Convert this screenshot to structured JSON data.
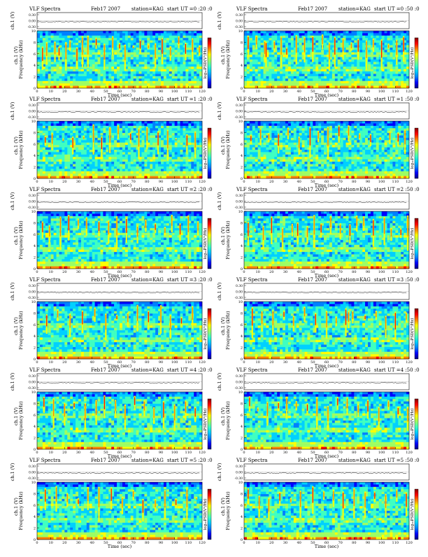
{
  "page": {
    "colors": {
      "colorbar": [
        "#000080",
        "#0000ff",
        "#0080ff",
        "#00d0ff",
        "#40ffc0",
        "#a0ff60",
        "#ffff00",
        "#ff8000",
        "#ff0000",
        "#800000"
      ],
      "background_noise": "#00c8ff",
      "axis": "#000000"
    }
  },
  "chart_data": [
    {
      "type": "heatmap",
      "title_left": "VLF Spectra",
      "date": "Feb17 2007",
      "station": "station=KAG",
      "start": "start UT =0 :20 :0",
      "top_ylabel": "ch.1 (V)",
      "top_yticks": [
        "0.30",
        "0.00",
        "-0.30"
      ],
      "ylabel": "Frequency (kHz)",
      "yticks": [
        "0",
        "2",
        "4",
        "6",
        "8",
        "10"
      ],
      "ylim": [
        0,
        10
      ],
      "xlabel": "Time (sec)",
      "xticks": [
        "0",
        "10",
        "20",
        "30",
        "40",
        "50",
        "60",
        "70",
        "80",
        "90",
        "100",
        "110",
        "120"
      ],
      "xlim": [
        0,
        120
      ],
      "colorbar_label": "log₁₀PSD(V²/Hz)",
      "bursts": [
        4,
        7,
        13,
        16,
        21,
        24,
        29,
        33,
        37,
        43,
        49,
        55,
        60,
        64,
        70,
        75,
        81,
        86,
        91,
        97,
        103,
        108,
        113,
        118
      ]
    },
    {
      "type": "heatmap",
      "title_left": "VLF Spectra",
      "date": "Feb17 2007",
      "station": "station=KAG",
      "start": "start UT =0 :50 :0",
      "top_ylabel": "ch.1 (V)",
      "top_yticks": [
        "0.30",
        "0.00",
        "-0.30"
      ],
      "ylabel": "Frequency (kHz)",
      "yticks": [
        "0",
        "2",
        "4",
        "6",
        "8",
        "10"
      ],
      "ylim": [
        0,
        10
      ],
      "xlabel": "Time (sec)",
      "xticks": [
        "0",
        "10",
        "20",
        "30",
        "40",
        "50",
        "60",
        "70",
        "80",
        "90",
        "100",
        "110",
        "120"
      ],
      "xlim": [
        0,
        120
      ],
      "colorbar_label": "log₁₀PSD(V²/Hz)",
      "bursts": [
        3,
        9,
        15,
        16,
        22,
        27,
        31,
        38,
        44,
        50,
        57,
        62,
        66,
        72,
        78,
        83,
        89,
        94,
        100,
        105,
        111,
        116
      ]
    },
    {
      "type": "heatmap",
      "title_left": "VLF Spectra",
      "date": "Feb17 2007",
      "station": "station=KAG",
      "start": "start UT =1 :20 :0",
      "top_ylabel": "ch.1 (V)",
      "top_yticks": [
        "0.30",
        "0.00",
        "-0.30"
      ],
      "ylabel": "Frequency (kHz)",
      "yticks": [
        "0",
        "2",
        "4",
        "6",
        "8",
        "10"
      ],
      "ylim": [
        0,
        10
      ],
      "xlabel": "Time (sec)",
      "xticks": [
        "0",
        "10",
        "20",
        "30",
        "40",
        "50",
        "60",
        "70",
        "80",
        "90",
        "100",
        "110",
        "120"
      ],
      "xlim": [
        0,
        120
      ],
      "colorbar_label": "log₁₀PSD(V²/Hz)",
      "bursts": [
        6,
        11,
        19,
        26,
        34,
        41,
        47,
        53,
        59,
        68,
        74,
        80,
        88,
        95,
        101,
        109,
        115
      ]
    },
    {
      "type": "heatmap",
      "title_left": "VLF Spectra",
      "date": "Feb17 2007",
      "station": "station=KAG",
      "start": "start UT =1 :50 :0",
      "top_ylabel": "ch.1 (V)",
      "top_yticks": [
        "0.30",
        "0.00",
        "-0.30"
      ],
      "ylabel": "Frequency (kHz)",
      "yticks": [
        "0",
        "2",
        "4",
        "6",
        "8",
        "10"
      ],
      "ylim": [
        0,
        10
      ],
      "xlabel": "Time (sec)",
      "xticks": [
        "0",
        "10",
        "20",
        "30",
        "40",
        "50",
        "60",
        "70",
        "80",
        "90",
        "100",
        "110",
        "120"
      ],
      "xlim": [
        0,
        120
      ],
      "colorbar_label": "log₁₀PSD(V²/Hz)",
      "bursts": [
        5,
        12,
        18,
        25,
        32,
        40,
        48,
        54,
        61,
        69,
        76,
        84,
        92,
        99,
        106,
        112,
        117
      ]
    },
    {
      "type": "heatmap",
      "title_left": "VLF Spectra",
      "date": "Feb17 2007",
      "station": "station=KAG",
      "start": "start UT =2 :20 :0",
      "top_ylabel": "ch.1 (V)",
      "top_yticks": [
        "0.30",
        "0.00",
        "-0.30"
      ],
      "ylabel": "Frequency (kHz)",
      "yticks": [
        "0",
        "2",
        "4",
        "6",
        "8",
        "10"
      ],
      "ylim": [
        0,
        10
      ],
      "xlabel": "Time (sec)",
      "xticks": [
        "0",
        "10",
        "20",
        "30",
        "40",
        "50",
        "60",
        "70",
        "80",
        "90",
        "100",
        "110",
        "120"
      ],
      "xlim": [
        0,
        120
      ],
      "colorbar_label": "log₁₀PSD(V²/Hz)",
      "bursts": [
        4,
        9,
        17,
        23,
        30,
        36,
        45,
        52,
        58,
        65,
        73,
        79,
        86,
        93,
        98,
        104,
        110,
        117
      ]
    },
    {
      "type": "heatmap",
      "title_left": "VLF Spectra",
      "date": "Feb17 2007",
      "station": "station=KAG",
      "start": "start UT =2 :50 :0",
      "top_ylabel": "ch.1 (V)",
      "top_yticks": [
        "0.30",
        "0.00",
        "-0.30"
      ],
      "ylabel": "Frequency (kHz)",
      "yticks": [
        "0",
        "2",
        "4",
        "6",
        "8",
        "10"
      ],
      "ylim": [
        0,
        10
      ],
      "xlabel": "Time (sec)",
      "xticks": [
        "0",
        "10",
        "20",
        "30",
        "40",
        "50",
        "60",
        "70",
        "80",
        "90",
        "100",
        "110",
        "120"
      ],
      "xlim": [
        0,
        120
      ],
      "colorbar_label": "log₁₀PSD(V²/Hz)",
      "bursts": [
        3,
        8,
        14,
        20,
        28,
        35,
        39,
        46,
        51,
        56,
        63,
        70,
        77,
        82,
        87,
        94,
        102,
        107,
        114,
        119
      ]
    },
    {
      "type": "heatmap",
      "title_left": "VLF Spectra",
      "date": "Feb17 2007",
      "station": "station=KAG",
      "start": "start UT =3 :20 :0",
      "top_ylabel": "ch.1 (V)",
      "top_yticks": [
        "0.30",
        "0.00",
        "-0.30"
      ],
      "ylabel": "Frequency (kHz)",
      "yticks": [
        "0",
        "2",
        "4",
        "6",
        "8",
        "10"
      ],
      "ylim": [
        0,
        10
      ],
      "xlabel": "Time (sec)",
      "xticks": [
        "0",
        "10",
        "20",
        "30",
        "40",
        "50",
        "60",
        "70",
        "80",
        "90",
        "100",
        "110",
        "120"
      ],
      "xlim": [
        0,
        120
      ],
      "colorbar_label": "log₁₀PSD(V²/Hz)",
      "bursts": [
        7,
        15,
        24,
        33,
        42,
        50,
        58,
        66,
        73,
        81,
        90,
        97,
        105,
        113
      ]
    },
    {
      "type": "heatmap",
      "title_left": "VLF Spectra",
      "date": "Feb17 2007",
      "station": "station=KAG",
      "start": "start UT =3 :50 :0",
      "top_ylabel": "ch.1 (V)",
      "top_yticks": [
        "0.30",
        "0.00",
        "-0.30"
      ],
      "ylabel": "Frequency (kHz)",
      "yticks": [
        "0",
        "2",
        "4",
        "6",
        "8",
        "10"
      ],
      "ylim": [
        0,
        10
      ],
      "xlabel": "Time (sec)",
      "xticks": [
        "0",
        "10",
        "20",
        "30",
        "40",
        "50",
        "60",
        "70",
        "80",
        "90",
        "100",
        "110",
        "120"
      ],
      "xlim": [
        0,
        120
      ],
      "colorbar_label": "log₁₀PSD(V²/Hz)",
      "bursts": [
        6,
        13,
        21,
        29,
        36,
        44,
        52,
        60,
        67,
        74,
        76,
        79,
        88,
        96,
        103,
        110,
        118
      ]
    },
    {
      "type": "heatmap",
      "title_left": "VLF Spectra",
      "date": "Feb17 2007",
      "station": "station=KAG",
      "start": "start UT =4 :20 :0",
      "top_ylabel": "ch.1 (V)",
      "top_yticks": [
        "0.30",
        "0.00",
        "-0.30"
      ],
      "ylabel": "Frequency (kHz)",
      "yticks": [
        "0",
        "2",
        "4",
        "6",
        "8",
        "10"
      ],
      "ylim": [
        0,
        10
      ],
      "xlabel": "Time (sec)",
      "xticks": [
        "0",
        "10",
        "20",
        "30",
        "40",
        "50",
        "60",
        "70",
        "80",
        "90",
        "100",
        "110",
        "120"
      ],
      "xlim": [
        0,
        120
      ],
      "colorbar_label": "log₁₀PSD(V²/Hz)",
      "bursts": [
        5,
        12,
        20,
        27,
        35,
        43,
        49,
        57,
        64,
        71,
        78,
        85,
        92,
        100,
        108,
        115
      ]
    },
    {
      "type": "heatmap",
      "title_left": "VLF Spectra",
      "date": "Feb17 2007",
      "station": "station=KAG",
      "start": "start UT =4 :50 :0",
      "top_ylabel": "ch.1 (V)",
      "top_yticks": [
        "0.30",
        "0.00",
        "-0.30"
      ],
      "ylabel": "Frequency (kHz)",
      "yticks": [
        "0",
        "2",
        "4",
        "6",
        "8",
        "10"
      ],
      "ylim": [
        0,
        10
      ],
      "xlabel": "Time (sec)",
      "xticks": [
        "0",
        "10",
        "20",
        "30",
        "40",
        "50",
        "60",
        "70",
        "80",
        "90",
        "100",
        "110",
        "120"
      ],
      "xlim": [
        0,
        120
      ],
      "colorbar_label": "log₁₀PSD(V²/Hz)",
      "bursts": [
        4,
        10,
        17,
        25,
        31,
        38,
        46,
        53,
        61,
        68,
        75,
        83,
        90,
        98,
        105,
        112,
        119
      ]
    },
    {
      "type": "heatmap",
      "title_left": "VLF Spectra",
      "date": "Feb17 2007",
      "station": "station=KAG",
      "start": "start UT =5 :20 :0",
      "top_ylabel": "ch.1 (V)",
      "top_yticks": [
        "0.30",
        "0.00",
        "-0.30"
      ],
      "ylabel": "Frequency (kHz)",
      "yticks": [
        "0",
        "2",
        "4",
        "6",
        "8",
        "10"
      ],
      "ylim": [
        0,
        10
      ],
      "xlabel": "Time (sec)",
      "xticks": [
        "0",
        "10",
        "20",
        "30",
        "40",
        "50",
        "60",
        "70",
        "80",
        "90",
        "100",
        "110",
        "120"
      ],
      "xlim": [
        0,
        120
      ],
      "colorbar_label": "log₁₀PSD(V²/Hz)",
      "bursts": [
        6,
        14,
        22,
        30,
        37,
        45,
        54,
        62,
        70,
        77,
        86,
        93,
        101,
        109,
        116
      ]
    },
    {
      "type": "heatmap",
      "title_left": "VLF Spectra",
      "date": "Feb17 2007",
      "station": "station=KAG",
      "start": "start UT =5 :50 :0",
      "top_ylabel": "ch.1 (V)",
      "top_yticks": [
        "0.30",
        "0.00",
        "-0.30"
      ],
      "ylabel": "Frequency (kHz)",
      "yticks": [
        "0",
        "2",
        "4",
        "6",
        "8",
        "10"
      ],
      "ylim": [
        0,
        10
      ],
      "xlabel": "Time (sec)",
      "xticks": [
        "0",
        "10",
        "20",
        "30",
        "40",
        "50",
        "60",
        "70",
        "80",
        "90",
        "100",
        "110",
        "120"
      ],
      "xlim": [
        0,
        120
      ],
      "colorbar_label": "log₁₀PSD(V²/Hz)",
      "bursts": [
        3,
        11,
        18,
        26,
        34,
        41,
        50,
        58,
        65,
        72,
        80,
        88,
        95,
        103,
        111,
        118
      ]
    }
  ]
}
